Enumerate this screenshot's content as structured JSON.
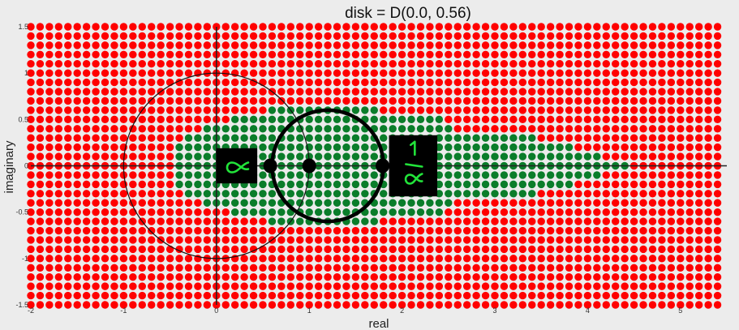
{
  "chart_data": {
    "type": "scatter",
    "title": "disk = D(0.0, 0.56)",
    "xlabel": "real",
    "ylabel": "imaginary",
    "xlim": [
      -2,
      5.5
    ],
    "ylim": [
      -1.5,
      1.5
    ],
    "xticks": [
      -2,
      -1,
      0,
      1,
      2,
      3,
      4,
      5
    ],
    "xtick_labels": [
      "-2",
      "-1",
      "0",
      "1",
      "2",
      "3",
      "4",
      "5"
    ],
    "yticks": [
      -1.5,
      -1,
      -0.5,
      0,
      0.5,
      1,
      1.5
    ],
    "ytick_labels": [
      "-1.5",
      "-1",
      "-0.5",
      "0",
      "0.5",
      "1",
      "1.5"
    ],
    "grid": {
      "x_start": -2.0,
      "x_step": 0.1,
      "x_count": 75,
      "y_start": -1.5,
      "y_step": 0.1,
      "y_count": 31
    },
    "colors": {
      "outside": "#ff0000",
      "inside": "#0a7d2a",
      "background": "#ececec"
    },
    "green_region_rows": [
      {
        "y": 0.6,
        "x_min": 0.6,
        "x_max": 1.7
      },
      {
        "y": 0.5,
        "x_min": 0.2,
        "x_max": 2.4
      },
      {
        "y": 0.4,
        "x_min": -0.1,
        "x_max": 2.5
      },
      {
        "y": 0.3,
        "x_min": -0.3,
        "x_max": 3.4
      },
      {
        "y": 0.2,
        "x_min": -0.4,
        "x_max": 3.8
      },
      {
        "y": 0.1,
        "x_min": -0.4,
        "x_max": 4.1
      },
      {
        "y": 0.0,
        "x_min": -0.4,
        "x_max": 4.4
      },
      {
        "y": -0.1,
        "x_min": -0.4,
        "x_max": 4.1
      },
      {
        "y": -0.2,
        "x_min": -0.4,
        "x_max": 3.8
      },
      {
        "y": -0.3,
        "x_min": -0.3,
        "x_max": 3.4
      },
      {
        "y": -0.4,
        "x_min": -0.1,
        "x_max": 2.5
      },
      {
        "y": -0.5,
        "x_min": 0.2,
        "x_max": 2.4
      },
      {
        "y": -0.6,
        "x_min": 0.6,
        "x_max": 1.7
      }
    ],
    "unit_circle": {
      "cx": 0,
      "cy": 0,
      "r": 1
    },
    "disk_circle": {
      "cx": 1.2,
      "cy": 0,
      "r": 0.6
    },
    "marked_points": [
      {
        "x": 0.58,
        "y": 0
      },
      {
        "x": 1.0,
        "y": 0
      },
      {
        "x": 1.79,
        "y": 0
      }
    ],
    "annotations": [
      {
        "id": "alpha",
        "x": 0.22,
        "y": 0,
        "w": 0.44,
        "h": 0.38,
        "symbol": "α"
      },
      {
        "id": "one-over-alpha",
        "x": 2.12,
        "y": 0,
        "w": 0.52,
        "h": 0.66,
        "symbol": "1/α"
      }
    ],
    "annotation_colors": {
      "box": "#000000",
      "ink": "#22e33a"
    }
  }
}
